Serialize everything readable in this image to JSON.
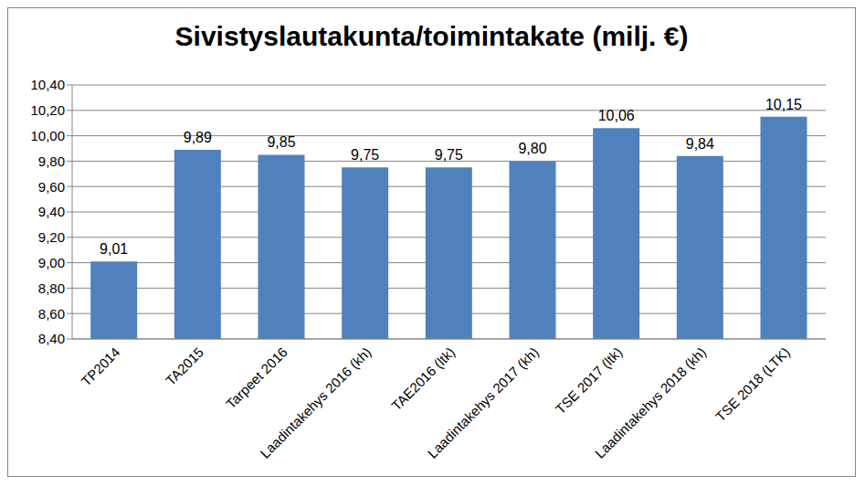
{
  "chart_data": {
    "type": "bar",
    "title": "Sivistyslautakunta/toimintakate (milj. €)",
    "categories": [
      "TP2014",
      "TA2015",
      "Tarpeet 2016",
      "Laadintakehys 2016 (kh)",
      "TAE2016 (ltk)",
      "Laadintakehys 2017 (kh)",
      "TSE 2017 (ltk)",
      "Laadintakehys 2018 (kh)",
      "TSE 2018 (LTK)"
    ],
    "values": [
      9.01,
      9.89,
      9.85,
      9.75,
      9.75,
      9.8,
      10.06,
      9.84,
      10.15
    ],
    "value_labels": [
      "9,01",
      "9,89",
      "9,85",
      "9,75",
      "9,75",
      "9,80",
      "10,06",
      "9,84",
      "10,15"
    ],
    "color": "#4f81bd",
    "ylim": [
      8.4,
      10.4
    ],
    "yticks": [
      {
        "value": 8.4,
        "label": "8,40"
      },
      {
        "value": 8.6,
        "label": "8,60"
      },
      {
        "value": 8.8,
        "label": "8,80"
      },
      {
        "value": 9.0,
        "label": "9,00"
      },
      {
        "value": 9.2,
        "label": "9,20"
      },
      {
        "value": 9.4,
        "label": "9,40"
      },
      {
        "value": 9.6,
        "label": "9,60"
      },
      {
        "value": 9.8,
        "label": "9,80"
      },
      {
        "value": 10.0,
        "label": "10,00"
      },
      {
        "value": 10.2,
        "label": "10,20"
      },
      {
        "value": 10.4,
        "label": "10,40"
      }
    ],
    "grid": true,
    "data_labels": true
  }
}
